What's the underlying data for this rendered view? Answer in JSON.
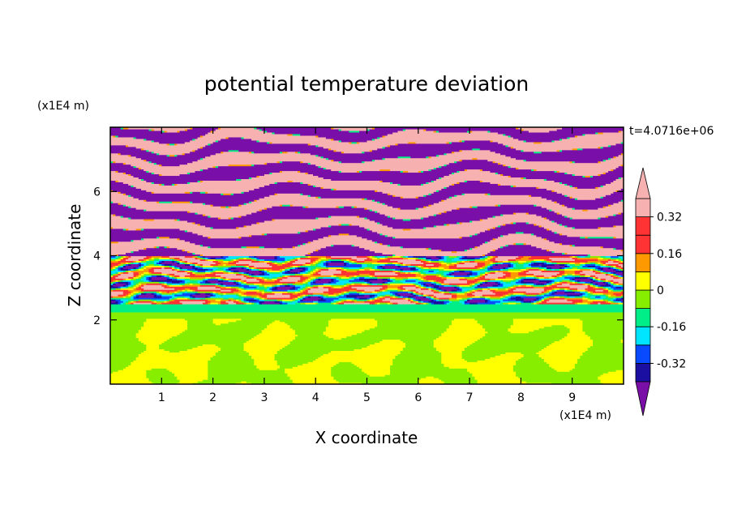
{
  "chart_data": {
    "type": "heatmap",
    "title": "potential temperature deviation",
    "xlabel": "X coordinate",
    "ylabel": "Z coordinate",
    "x_unit": "(x1E4 m)",
    "y_unit": "(x1E4 m)",
    "time_label": "t=4.0716e+06",
    "xlim": [
      0,
      10
    ],
    "ylim": [
      0,
      8
    ],
    "x_ticks": [
      "1",
      "2",
      "3",
      "4",
      "5",
      "6",
      "7",
      "8",
      "9"
    ],
    "y_ticks": [
      "2",
      "4",
      "6"
    ],
    "grid": false,
    "colorbar": {
      "levels": [
        -0.4,
        -0.32,
        -0.24,
        -0.16,
        -0.08,
        0,
        0.08,
        0.16,
        0.24,
        0.32,
        0.4
      ],
      "labels": [
        "0.32",
        "0.16",
        "0",
        "-0.16",
        "-0.32"
      ],
      "colors_bottom_to_top": [
        "#7a0fa8",
        "#1a0fa0",
        "#0a4aff",
        "#00e5ff",
        "#00ee88",
        "#88ee00",
        "#ffff00",
        "#ff9900",
        "#ff3333",
        "#ff3333",
        "#f7b1b1"
      ],
      "over_color": "#f7b1b1",
      "under_color": "#7a0fa8"
    },
    "regions": [
      {
        "z_range": [
          0,
          2.05
        ],
        "pattern": "lower layer, green convective cells",
        "values": [
          0,
          0.08
        ]
      },
      {
        "z_range": [
          2.05,
          2.5
        ],
        "pattern": "transition band",
        "values": [
          -0.08,
          -0.16
        ]
      },
      {
        "z_range": [
          2.5,
          4.0
        ],
        "pattern": "turbulent mixed layer",
        "values": [
          -0.4,
          0.4
        ]
      },
      {
        "z_range": [
          4.0,
          8.0
        ],
        "pattern": "upper alternating stratified layers",
        "values": [
          -0.4,
          0.4
        ]
      }
    ]
  }
}
